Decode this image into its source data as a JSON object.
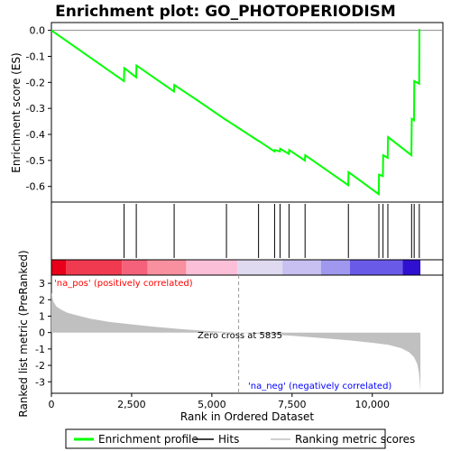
{
  "chart_data": {
    "type": "line",
    "title": "Enrichment plot: GO_PHOTOPERIODISM",
    "es_panel": {
      "ylabel": "Enrichment score (ES)",
      "ylim": [
        -0.66,
        0.03
      ],
      "yticks": [
        0.0,
        -0.1,
        -0.2,
        -0.3,
        -0.4,
        -0.5,
        -0.6
      ],
      "ytick_labels": [
        "0.0",
        "-0.1",
        "-0.2",
        "-0.3",
        "-0.4",
        "-0.5",
        "-0.6"
      ],
      "line_color": "#00ff00",
      "series": [
        {
          "name": "Enrichment profile",
          "x": [
            0,
            2260,
            2270,
            2640,
            2650,
            3820,
            3830,
            4500,
            5450,
            5460,
            6450,
            6460,
            6950,
            6960,
            7120,
            7130,
            7400,
            7410,
            7900,
            7910,
            9250,
            9260,
            10200,
            10210,
            10330,
            10340,
            10480,
            10490,
            11220,
            11230,
            11300,
            11310,
            11460,
            11470
          ],
          "y": [
            0.0,
            -0.195,
            -0.145,
            -0.18,
            -0.135,
            -0.235,
            -0.21,
            -0.265,
            -0.345,
            -0.345,
            -0.425,
            -0.425,
            -0.465,
            -0.46,
            -0.465,
            -0.455,
            -0.475,
            -0.46,
            -0.5,
            -0.48,
            -0.595,
            -0.545,
            -0.63,
            -0.555,
            -0.56,
            -0.48,
            -0.49,
            -0.41,
            -0.48,
            -0.34,
            -0.345,
            -0.195,
            -0.205,
            0.005
          ]
        }
      ]
    },
    "hits": {
      "name": "Hits",
      "positions": [
        2265,
        2645,
        3825,
        5455,
        6455,
        6955,
        7125,
        7405,
        7905,
        9255,
        10205,
        10335,
        10485,
        11225,
        11305,
        11465
      ]
    },
    "metric_panel": {
      "ylabel": "Ranked list metric (PreRanked)",
      "ylim": [
        -3.7,
        3.5
      ],
      "yticks": [
        3,
        2,
        1,
        0,
        -1,
        -2,
        -3
      ],
      "ytick_labels": [
        "3",
        "2",
        "1",
        "0",
        "-1",
        "-2",
        "-3"
      ],
      "fill_color": "#c0c0c0",
      "series": [
        {
          "name": "Ranking metric scores",
          "x": [
            0,
            60,
            150,
            300,
            500,
            800,
            1200,
            1800,
            2500,
            3200,
            4000,
            4800,
            5835,
            6500,
            7500,
            8500,
            9300,
            10000,
            10500,
            10900,
            11150,
            11300,
            11400,
            11450,
            11480,
            11499
          ],
          "y": [
            2.45,
            1.9,
            1.6,
            1.4,
            1.2,
            1.05,
            0.85,
            0.65,
            0.5,
            0.35,
            0.22,
            0.1,
            0.0,
            -0.08,
            -0.2,
            -0.35,
            -0.48,
            -0.62,
            -0.75,
            -0.95,
            -1.2,
            -1.5,
            -1.9,
            -2.4,
            -3.0,
            -3.6
          ]
        }
      ],
      "zero_cross_label": "Zero cross at 5835",
      "zero_cross": 5835,
      "pos_label": "'na_pos' (positively correlated)",
      "neg_label": "'na_neg' (negatively correlated)",
      "pos_color": "#ff0000",
      "neg_color": "#0000ff"
    },
    "xaxis": {
      "xlabel": "Rank in Ordered Dataset",
      "xlim": [
        0,
        12200
      ],
      "xticks": [
        0,
        2500,
        5000,
        7500,
        10000
      ],
      "xtick_labels": [
        "0",
        "2,500",
        "5,000",
        "7,500",
        "10,000"
      ]
    },
    "colorbar": {
      "segments": [
        {
          "start": 0,
          "end": 450,
          "color": "#e8001a"
        },
        {
          "start": 450,
          "end": 2200,
          "color": "#f03a50"
        },
        {
          "start": 2200,
          "end": 3000,
          "color": "#f5607a"
        },
        {
          "start": 3000,
          "end": 4200,
          "color": "#f890a0"
        },
        {
          "start": 4200,
          "end": 5800,
          "color": "#fbc0d8"
        },
        {
          "start": 5800,
          "end": 7200,
          "color": "#e0daf0"
        },
        {
          "start": 7200,
          "end": 8400,
          "color": "#c8c0f0"
        },
        {
          "start": 8400,
          "end": 9300,
          "color": "#9f98ee"
        },
        {
          "start": 9300,
          "end": 10950,
          "color": "#6a5ae8"
        },
        {
          "start": 10950,
          "end": 11500,
          "color": "#3010d0"
        }
      ]
    },
    "legend": {
      "placement": "bottom",
      "items": [
        {
          "label": "Enrichment profile",
          "color": "#00ff00",
          "kind": "line-thick"
        },
        {
          "label": "Hits",
          "color": "#000000",
          "kind": "line"
        },
        {
          "label": "Ranking metric scores",
          "color": "#c0c0c0",
          "kind": "line"
        }
      ]
    }
  }
}
